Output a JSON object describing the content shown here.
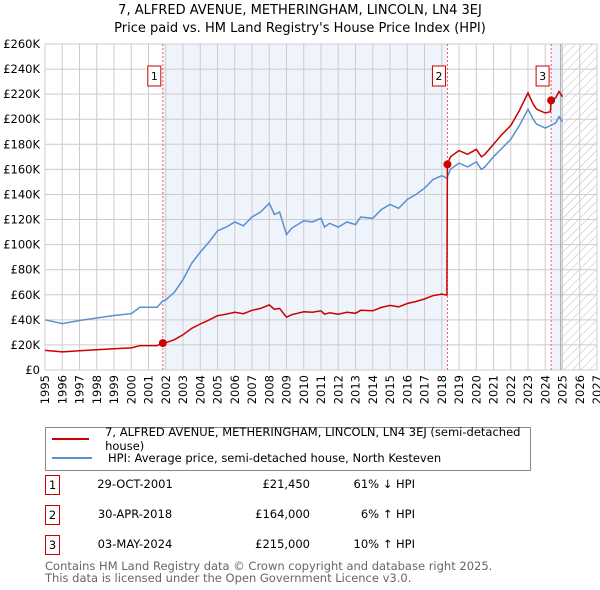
{
  "title": "7, ALFRED AVENUE, METHERINGHAM, LINCOLN, LN4 3EJ",
  "subtitle": "Price paid vs. HM Land Registry's House Price Index (HPI)",
  "chart_data": {
    "type": "line",
    "title": "7, ALFRED AVENUE, METHERINGHAM, LINCOLN, LN4 3EJ",
    "subtitle": "Price paid vs. HM Land Registry's House Price Index (HPI)",
    "xlim": [
      1995,
      2027
    ],
    "ylim": [
      0,
      260000
    ],
    "grid": true,
    "x_ticks": [
      "1995",
      "1996",
      "1997",
      "1998",
      "1999",
      "2000",
      "2001",
      "2002",
      "2003",
      "2004",
      "2005",
      "2006",
      "2007",
      "2008",
      "2009",
      "2010",
      "2011",
      "2012",
      "2013",
      "2014",
      "2015",
      "2016",
      "2017",
      "2018",
      "2019",
      "2020",
      "2021",
      "2022",
      "2023",
      "2024",
      "2025",
      "2026",
      "2027"
    ],
    "y_ticks": [
      {
        "v": 0,
        "l": "£0"
      },
      {
        "v": 20000,
        "l": "£20K"
      },
      {
        "v": 40000,
        "l": "£40K"
      },
      {
        "v": 60000,
        "l": "£60K"
      },
      {
        "v": 80000,
        "l": "£80K"
      },
      {
        "v": 100000,
        "l": "£100K"
      },
      {
        "v": 120000,
        "l": "£120K"
      },
      {
        "v": 140000,
        "l": "£140K"
      },
      {
        "v": 160000,
        "l": "£160K"
      },
      {
        "v": 180000,
        "l": "£180K"
      },
      {
        "v": 200000,
        "l": "£200K"
      },
      {
        "v": 220000,
        "l": "£220K"
      },
      {
        "v": 240000,
        "l": "£240K"
      },
      {
        "v": 260000,
        "l": "£260K"
      }
    ],
    "shaded_ranges": [
      [
        2001.83,
        2018.33
      ],
      [
        2024.34,
        2024.9
      ]
    ],
    "forecast_from": 2024.9,
    "series": [
      {
        "name": "7, ALFRED AVENUE, METHERINGHAM, LINCOLN, LN4 3EJ (semi-detached house)",
        "color": "#cc0000",
        "x": [
          1995,
          1996,
          1997,
          1998,
          1999,
          2000,
          2000.5,
          2001.5,
          2001.83,
          2002,
          2002.5,
          2003,
          2003.5,
          2004,
          2004.5,
          2005,
          2005.5,
          2006,
          2006.5,
          2007,
          2007.5,
          2008,
          2008.3,
          2008.6,
          2009,
          2009.3,
          2010,
          2010.5,
          2011,
          2011.2,
          2011.5,
          2012,
          2012.5,
          2013,
          2013.3,
          2014,
          2014.5,
          2015,
          2015.5,
          2016,
          2016.5,
          2017,
          2017.5,
          2018,
          2018.3,
          2018.33,
          2018.5,
          2019,
          2019.5,
          2020,
          2020.3,
          2020.5,
          2021,
          2021.5,
          2022,
          2022.5,
          2023,
          2023.3,
          2023.5,
          2024,
          2024.3,
          2024.34,
          2024.6,
          2024.8,
          2025
        ],
        "y": [
          15600,
          14400,
          15400,
          16200,
          17000,
          17600,
          19500,
          19500,
          21450,
          21800,
          24200,
          28100,
          33200,
          36700,
          39800,
          43300,
          44500,
          46000,
          44900,
          47600,
          49100,
          51900,
          48400,
          49100,
          42100,
          44100,
          46400,
          46000,
          47200,
          44500,
          45600,
          44500,
          46000,
          45200,
          47600,
          47200,
          49900,
          51500,
          50300,
          53000,
          54600,
          56600,
          59300,
          60500,
          59700,
          164000,
          170000,
          175000,
          172000,
          176000,
          170000,
          172000,
          180000,
          188000,
          195000,
          207000,
          221000,
          212000,
          208000,
          205000,
          206000,
          215000,
          217000,
          222000,
          218000
        ]
      },
      {
        "name": "HPI: Average price, semi-detached house, North Kesteven",
        "color": "#5b8fd0",
        "x": [
          1995,
          1996,
          1997,
          1998,
          1999,
          2000,
          2000.5,
          2001.5,
          2001.83,
          2002,
          2002.5,
          2003,
          2003.5,
          2004,
          2004.5,
          2005,
          2005.5,
          2006,
          2006.5,
          2007,
          2007.5,
          2008,
          2008.3,
          2008.6,
          2009,
          2009.3,
          2010,
          2010.5,
          2011,
          2011.2,
          2011.5,
          2012,
          2012.5,
          2013,
          2013.3,
          2014,
          2014.5,
          2015,
          2015.5,
          2016,
          2016.5,
          2017,
          2017.5,
          2018,
          2018.3,
          2018.5,
          2019,
          2019.5,
          2020,
          2020.3,
          2020.5,
          2021,
          2021.5,
          2022,
          2022.5,
          2023,
          2023.3,
          2023.5,
          2024,
          2024.3,
          2024.6,
          2024.8,
          2025
        ],
        "y": [
          40000,
          37000,
          39500,
          41500,
          43500,
          45000,
          50000,
          50000,
          55000,
          56000,
          62000,
          72000,
          85000,
          94000,
          102000,
          111000,
          114000,
          118000,
          115000,
          122000,
          126000,
          133000,
          124000,
          126000,
          108000,
          113000,
          119000,
          118000,
          121000,
          114000,
          117000,
          114000,
          118000,
          116000,
          122000,
          121000,
          128000,
          132000,
          129000,
          136000,
          140000,
          145000,
          152000,
          155000,
          153000,
          160000,
          165000,
          162000,
          166000,
          160000,
          162000,
          170000,
          177000,
          184000,
          195000,
          208000,
          200000,
          196000,
          193000,
          195000,
          197000,
          202000,
          198000
        ]
      }
    ],
    "sales": [
      {
        "n": "1",
        "x": 2001.83,
        "y": 21450
      },
      {
        "n": "2",
        "x": 2018.33,
        "y": 164000
      },
      {
        "n": "3",
        "x": 2024.34,
        "y": 215000
      }
    ]
  },
  "legend": [
    "7, ALFRED AVENUE, METHERINGHAM, LINCOLN, LN4 3EJ (semi-detached house)",
    "HPI: Average price, semi-detached house, North Kesteven"
  ],
  "sales_table": [
    {
      "n": "1",
      "date": "29-OCT-2001",
      "price": "£21,450",
      "hpi": "61% ↓ HPI"
    },
    {
      "n": "2",
      "date": "30-APR-2018",
      "price": "£164,000",
      "hpi": "6% ↑ HPI"
    },
    {
      "n": "3",
      "date": "03-MAY-2024",
      "price": "£215,000",
      "hpi": "10% ↑ HPI"
    }
  ],
  "footer": [
    "Contains HM Land Registry data © Crown copyright and database right 2025.",
    "This data is licensed under the Open Government Licence v3.0."
  ]
}
